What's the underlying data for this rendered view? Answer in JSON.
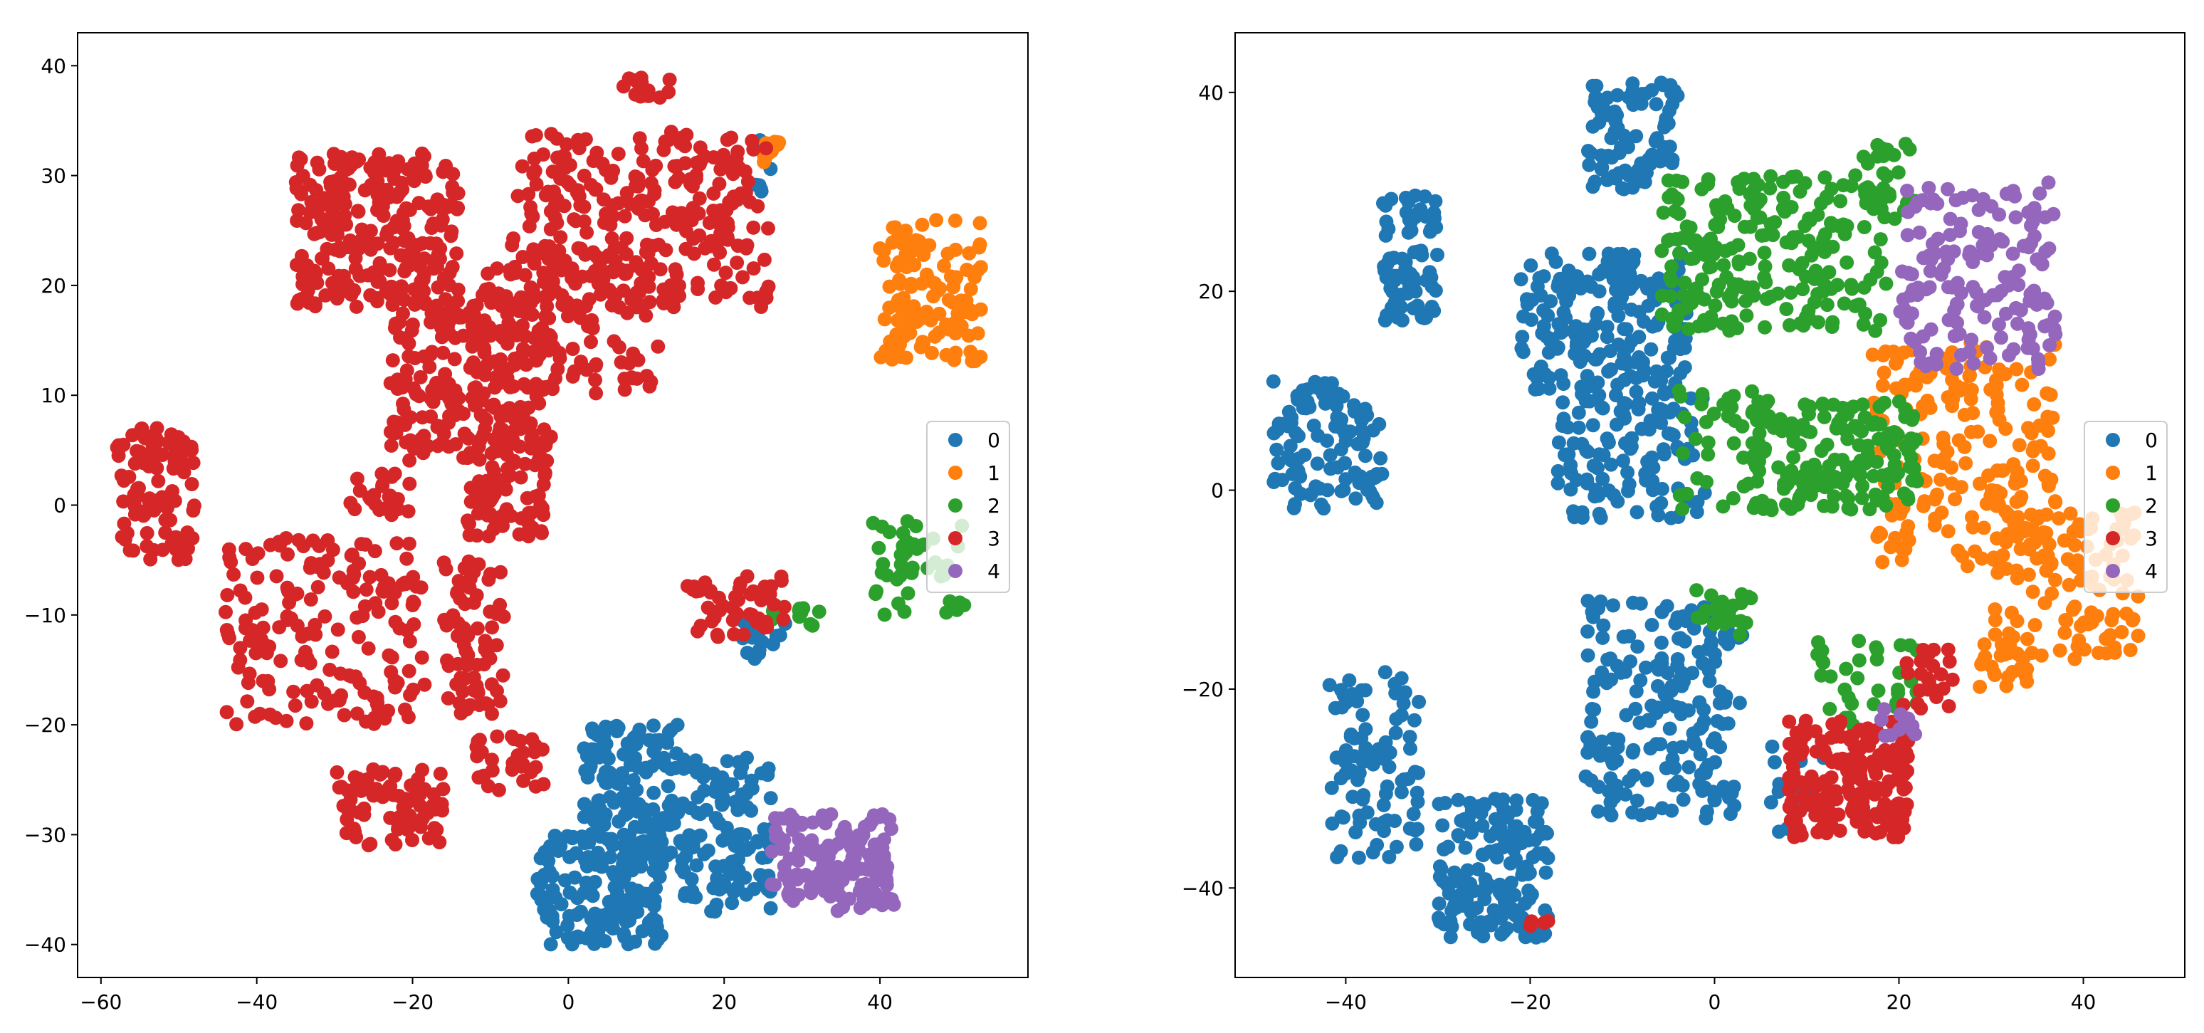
{
  "chart_data": [
    {
      "type": "scatter",
      "xlim": [
        -63,
        59
      ],
      "ylim": [
        -43,
        43
      ],
      "xticks": [
        -60,
        -40,
        -20,
        0,
        20,
        40
      ],
      "xtick_labels": [
        "−60",
        "−40",
        "−20",
        "0",
        "20",
        "40"
      ],
      "yticks": [
        40,
        30,
        20,
        10,
        0,
        -10,
        -20,
        -30,
        -40
      ],
      "ytick_labels": [
        "40",
        "30",
        "20",
        "10",
        "0",
        "−10",
        "−20",
        "−30",
        "−40"
      ],
      "legend": {
        "position": "right",
        "labels": [
          "0",
          "1",
          "2",
          "3",
          "4"
        ]
      },
      "series": [
        {
          "name": "0",
          "color": "#1f77b4",
          "clusters": [
            {
              "x": [
                -4,
                12
              ],
              "y": [
                -40,
                -30
              ],
              "n": 160
            },
            {
              "x": [
                2,
                14
              ],
              "y": [
                -33,
                -20
              ],
              "n": 150
            },
            {
              "x": [
                14,
                26
              ],
              "y": [
                -37,
                -23
              ],
              "n": 120
            },
            {
              "x": [
                22,
                28
              ],
              "y": [
                -14,
                -10
              ],
              "n": 20
            },
            {
              "x": [
                24,
                26
              ],
              "y": [
                28,
                35
              ],
              "n": 8
            }
          ]
        },
        {
          "name": "1",
          "color": "#ff7f0e",
          "clusters": [
            {
              "x": [
                40,
                53
              ],
              "y": [
                13,
                26
              ],
              "n": 120
            },
            {
              "x": [
                25,
                28
              ],
              "y": [
                31,
                34
              ],
              "n": 10
            }
          ]
        },
        {
          "name": "2",
          "color": "#2ca02c",
          "clusters": [
            {
              "x": [
                39,
                51
              ],
              "y": [
                -10,
                -1
              ],
              "n": 45
            },
            {
              "x": [
                26,
                33
              ],
              "y": [
                -11,
                -9
              ],
              "n": 12
            }
          ]
        },
        {
          "name": "3",
          "color": "#d62728",
          "clusters": [
            {
              "x": [
                -35,
                -14
              ],
              "y": [
                18,
                32
              ],
              "n": 260
            },
            {
              "x": [
                -23,
                -2
              ],
              "y": [
                4,
                20
              ],
              "n": 230
            },
            {
              "x": [
                -8,
                26
              ],
              "y": [
                18,
                34
              ],
              "n": 300
            },
            {
              "x": [
                -11,
                12
              ],
              "y": [
                10,
                22
              ],
              "n": 90
            },
            {
              "x": [
                -58,
                -48
              ],
              "y": [
                -5,
                7
              ],
              "n": 100
            },
            {
              "x": [
                -44,
                -18
              ],
              "y": [
                -20,
                -3
              ],
              "n": 180
            },
            {
              "x": [
                -30,
                -16
              ],
              "y": [
                -31,
                -24
              ],
              "n": 80
            },
            {
              "x": [
                -16,
                -8
              ],
              "y": [
                -19,
                -5
              ],
              "n": 70
            },
            {
              "x": [
                -12,
                -3
              ],
              "y": [
                -26,
                -21
              ],
              "n": 30
            },
            {
              "x": [
                -13,
                -2
              ],
              "y": [
                -3,
                7
              ],
              "n": 80
            },
            {
              "x": [
                15,
                28
              ],
              "y": [
                -12,
                -6
              ],
              "n": 50
            },
            {
              "x": [
                -28,
                -20
              ],
              "y": [
                -1,
                3
              ],
              "n": 25
            },
            {
              "x": [
                7,
                13
              ],
              "y": [
                37,
                39
              ],
              "n": 15
            }
          ]
        },
        {
          "name": "4",
          "color": "#9467bd",
          "clusters": [
            {
              "x": [
                26,
                42
              ],
              "y": [
                -37,
                -28
              ],
              "n": 140
            }
          ]
        }
      ]
    },
    {
      "type": "scatter",
      "xlim": [
        -52,
        51
      ],
      "ylim": [
        -49,
        46
      ],
      "xticks": [
        -40,
        -20,
        0,
        20,
        40
      ],
      "xtick_labels": [
        "−40",
        "−20",
        "0",
        "20",
        "40"
      ],
      "yticks": [
        40,
        20,
        0,
        -20,
        -40
      ],
      "ytick_labels": [
        "40",
        "20",
        "0",
        "−20",
        "−40"
      ],
      "legend": {
        "position": "right",
        "labels": [
          "0",
          "1",
          "2",
          "3",
          "4"
        ]
      },
      "series": [
        {
          "name": "0",
          "color": "#1f77b4",
          "clusters": [
            {
              "x": [
                -14,
                -4
              ],
              "y": [
                30,
                41
              ],
              "n": 90
            },
            {
              "x": [
                -36,
                -30
              ],
              "y": [
                17,
                30
              ],
              "n": 80
            },
            {
              "x": [
                -21,
                -3
              ],
              "y": [
                10,
                24
              ],
              "n": 180
            },
            {
              "x": [
                -48,
                -36
              ],
              "y": [
                -2,
                11
              ],
              "n": 110
            },
            {
              "x": [
                -17,
                -1
              ],
              "y": [
                -3,
                10
              ],
              "n": 120
            },
            {
              "x": [
                -14,
                3
              ],
              "y": [
                -33,
                -11
              ],
              "n": 200
            },
            {
              "x": [
                -42,
                -32
              ],
              "y": [
                -37,
                -18
              ],
              "n": 90
            },
            {
              "x": [
                -30,
                -18
              ],
              "y": [
                -45,
                -31
              ],
              "n": 160
            },
            {
              "x": [
                6,
                12
              ],
              "y": [
                -35,
                -25
              ],
              "n": 15
            }
          ]
        },
        {
          "name": "1",
          "color": "#ff7f0e",
          "clusters": [
            {
              "x": [
                17,
                37
              ],
              "y": [
                -8,
                15
              ],
              "n": 200
            },
            {
              "x": [
                30,
                46
              ],
              "y": [
                -17,
                -2
              ],
              "n": 120
            },
            {
              "x": [
                28,
                34
              ],
              "y": [
                -20,
                -15
              ],
              "n": 20
            }
          ]
        },
        {
          "name": "2",
          "color": "#2ca02c",
          "clusters": [
            {
              "x": [
                -6,
                19
              ],
              "y": [
                16,
                32
              ],
              "n": 220
            },
            {
              "x": [
                4,
                22
              ],
              "y": [
                -2,
                9
              ],
              "n": 170
            },
            {
              "x": [
                16,
                22
              ],
              "y": [
                27,
                35
              ],
              "n": 30
            },
            {
              "x": [
                -2,
                4
              ],
              "y": [
                -15,
                -10
              ],
              "n": 25
            },
            {
              "x": [
                10,
                22
              ],
              "y": [
                -24,
                -15
              ],
              "n": 35
            },
            {
              "x": [
                -4,
                6
              ],
              "y": [
                -2,
                10
              ],
              "n": 40
            }
          ]
        },
        {
          "name": "3",
          "color": "#d62728",
          "clusters": [
            {
              "x": [
                8,
                21
              ],
              "y": [
                -35,
                -23
              ],
              "n": 190
            },
            {
              "x": [
                20,
                26
              ],
              "y": [
                -22,
                -16
              ],
              "n": 25
            },
            {
              "x": [
                -20,
                -18
              ],
              "y": [
                -44,
                -43
              ],
              "n": 4
            }
          ]
        },
        {
          "name": "4",
          "color": "#9467bd",
          "clusters": [
            {
              "x": [
                20,
                37
              ],
              "y": [
                12,
                31
              ],
              "n": 160
            },
            {
              "x": [
                18,
                22
              ],
              "y": [
                -26,
                -22
              ],
              "n": 12
            }
          ]
        }
      ]
    }
  ]
}
